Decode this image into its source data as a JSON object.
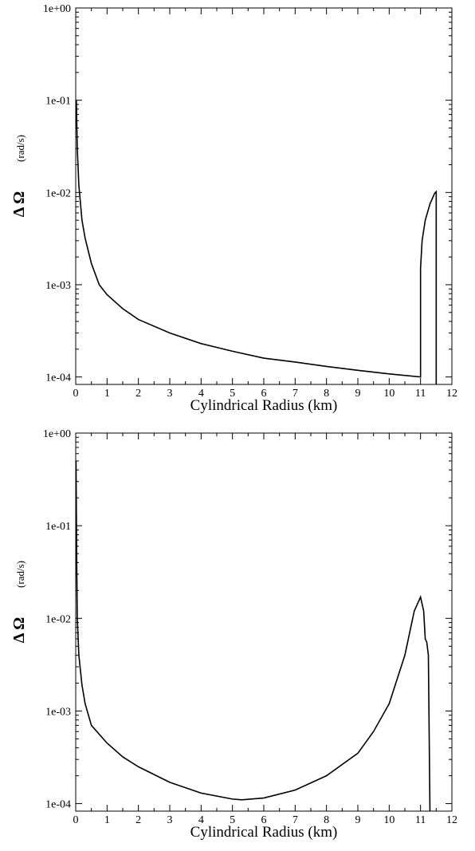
{
  "chart_data": [
    {
      "type": "line",
      "xlabel": "Cylindrical Radius (km)",
      "ylabel": "Δ Ω",
      "ylabel_unit": "(rad/s)",
      "log_y": true,
      "x": [
        0.02,
        0.05,
        0.1,
        0.2,
        0.3,
        0.5,
        0.75,
        1,
        1.5,
        2,
        3,
        4,
        5,
        6,
        7,
        8,
        9,
        10,
        11,
        11,
        11.05,
        11.15,
        11.3,
        11.45,
        11.5,
        11.5
      ],
      "series": [
        {
          "color": "#000000",
          "values": [
            0.1,
            0.03,
            0.012,
            0.005,
            0.0032,
            0.0017,
            0.001,
            0.00078,
            0.00055,
            0.00042,
            0.0003,
            0.00023,
            0.00019,
            0.00016,
            0.000145,
            0.00013,
            0.000118,
            0.000108,
            0.0001,
            0.0015,
            0.003,
            0.005,
            0.0075,
            0.0098,
            0.0102,
            8.3e-05
          ]
        }
      ],
      "xlim": [
        0,
        12
      ],
      "ylim": [
        8.3e-05,
        1
      ],
      "xticks": [
        0,
        1,
        2,
        3,
        4,
        5,
        6,
        7,
        8,
        9,
        10,
        11,
        12
      ],
      "yticks": [
        {
          "value": 0.0001,
          "label": "1e-04"
        },
        {
          "value": 0.001,
          "label": "1e-03"
        },
        {
          "value": 0.01,
          "label": "1e-02"
        },
        {
          "value": 0.1,
          "label": "1e-01"
        },
        {
          "value": 1,
          "label": "1e+00"
        }
      ]
    },
    {
      "type": "line",
      "xlabel": "Cylindrical Radius (km)",
      "ylabel": "Δ Ω",
      "ylabel_unit": "(rad/s)",
      "log_y": true,
      "x": [
        0.01,
        0.03,
        0.05,
        0.1,
        0.2,
        0.3,
        0.5,
        1,
        1.5,
        2,
        3,
        4,
        5,
        5.3,
        6,
        7,
        8,
        9,
        9.5,
        10,
        10.5,
        10.8,
        11,
        11.1,
        11.15,
        11.2,
        11.25,
        11.3
      ],
      "series": [
        {
          "color": "#000000",
          "values": [
            0.5,
            0.05,
            0.01,
            0.004,
            0.0019,
            0.0012,
            0.0007,
            0.00045,
            0.00032,
            0.00025,
            0.00017,
            0.00013,
            0.000112,
            0.00011,
            0.000115,
            0.00014,
            0.0002,
            0.00035,
            0.0006,
            0.0012,
            0.004,
            0.012,
            0.017,
            0.012,
            0.006,
            0.0055,
            0.004,
            8.3e-05
          ]
        }
      ],
      "xlim": [
        0,
        12
      ],
      "ylim": [
        8.3e-05,
        1
      ],
      "xticks": [
        0,
        1,
        2,
        3,
        4,
        5,
        6,
        7,
        8,
        9,
        10,
        11,
        12
      ],
      "yticks": [
        {
          "value": 0.0001,
          "label": "1e-04"
        },
        {
          "value": 0.001,
          "label": "1e-03"
        },
        {
          "value": 0.01,
          "label": "1e-02"
        },
        {
          "value": 0.1,
          "label": "1e-01"
        },
        {
          "value": 1,
          "label": "1e+00"
        }
      ]
    }
  ]
}
